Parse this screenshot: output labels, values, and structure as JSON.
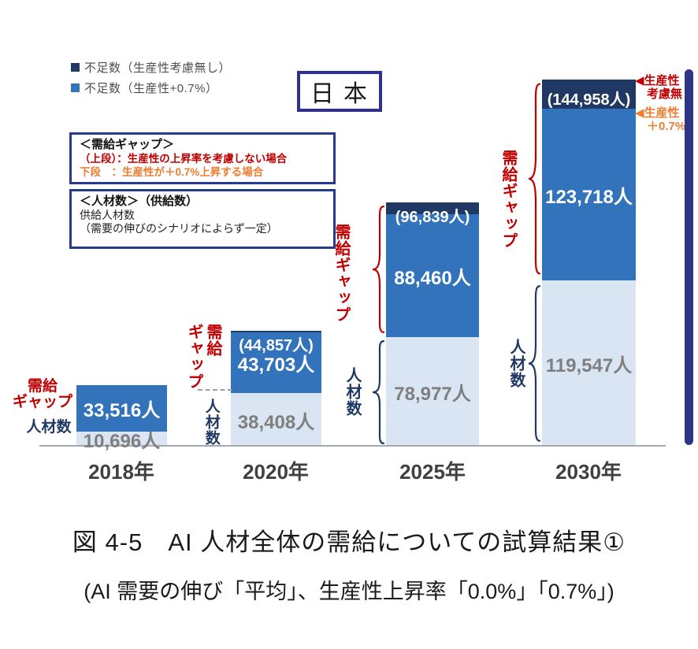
{
  "colors": {
    "navy": "#1f3864",
    "blue": "#3273bb",
    "light_blue": "#d9e5f2",
    "red": "#c00000",
    "orange": "#ed7d31",
    "frame_blue": "#2e3192",
    "axis_gray": "#a3a9b0",
    "value_gray": "#7f7f7f"
  },
  "legend": {
    "items": [
      {
        "label": "不足数（生産性考慮無し）",
        "color": "#1f3864"
      },
      {
        "label": "不足数（生産性+0.7%）",
        "color": "#3273bb"
      }
    ]
  },
  "region_badge": {
    "text": "日本"
  },
  "gap_box": {
    "title": "＜需給ギャップ＞",
    "line_upper": "（上段）：生産性の上昇率を考慮しない場合",
    "line_lower": "下段　：生産性が＋0.7%上昇する場合"
  },
  "supply_box": {
    "title": "＜人材数＞（供給数）",
    "line1": "供給人材数",
    "line2": "（需要の伸びのシナリオによらず一定）"
  },
  "annotations": {
    "gap_label_2018": "需給\nギャップ",
    "supply_label_2018": "人材数",
    "gap_label_2020": "需給\nギャップ",
    "supply_label_2020": "人材数",
    "gap_label_2025": "需給ギャップ",
    "supply_label_2025": "人材数",
    "gap_label_2030": "需給ギャップ",
    "supply_label_2030": "人材数",
    "right_note_red": {
      "line1": "◀生産性",
      "line2": "考慮無し"
    },
    "right_note_orange": {
      "line1": "◀生産性",
      "line2": "＋0.7%"
    }
  },
  "chart_data": {
    "type": "bar",
    "stacked": true,
    "unit": "人",
    "title": "AI人材全体の需給についての試算結果（日本）",
    "categories": [
      "2018年",
      "2020年",
      "2025年",
      "2030年"
    ],
    "series": [
      {
        "name": "人材数（供給数）",
        "values": [
          10696,
          38408,
          78977,
          119547
        ]
      },
      {
        "name": "不足数（生産性+0.7%）",
        "values": [
          33516,
          43703,
          88460,
          123718
        ]
      },
      {
        "name": "不足数（生産性考慮無し）",
        "values": [
          null,
          44857,
          96839,
          144958
        ]
      }
    ],
    "legend_position": "top-left",
    "grid": false,
    "bars": [
      {
        "year": "2018年",
        "supply": 10696,
        "gap07": 33516,
        "gap_no": null,
        "supply_label": "10,696人",
        "gap07_label": "33,516人",
        "gap_no_label": ""
      },
      {
        "year": "2020年",
        "supply": 38408,
        "gap07": 43703,
        "gap_no": 44857,
        "supply_label": "38,408人",
        "gap07_label": "43,703人",
        "gap_no_label": "(44,857人)"
      },
      {
        "year": "2025年",
        "supply": 78977,
        "gap07": 88460,
        "gap_no": 96839,
        "supply_label": "78,977人",
        "gap07_label": "88,460人",
        "gap_no_label": "(96,839人)"
      },
      {
        "year": "2030年",
        "supply": 119547,
        "gap07": 123718,
        "gap_no": 144958,
        "supply_label": "119,547人",
        "gap07_label": "123,718人",
        "gap_no_label": "(144,958人)"
      }
    ]
  },
  "caption": {
    "line1": "図 4-5　AI 人材全体の需給についての試算結果①",
    "line2": "(AI 需要の伸び「平均」、生産性上昇率「0.0%」「0.7%」)"
  }
}
